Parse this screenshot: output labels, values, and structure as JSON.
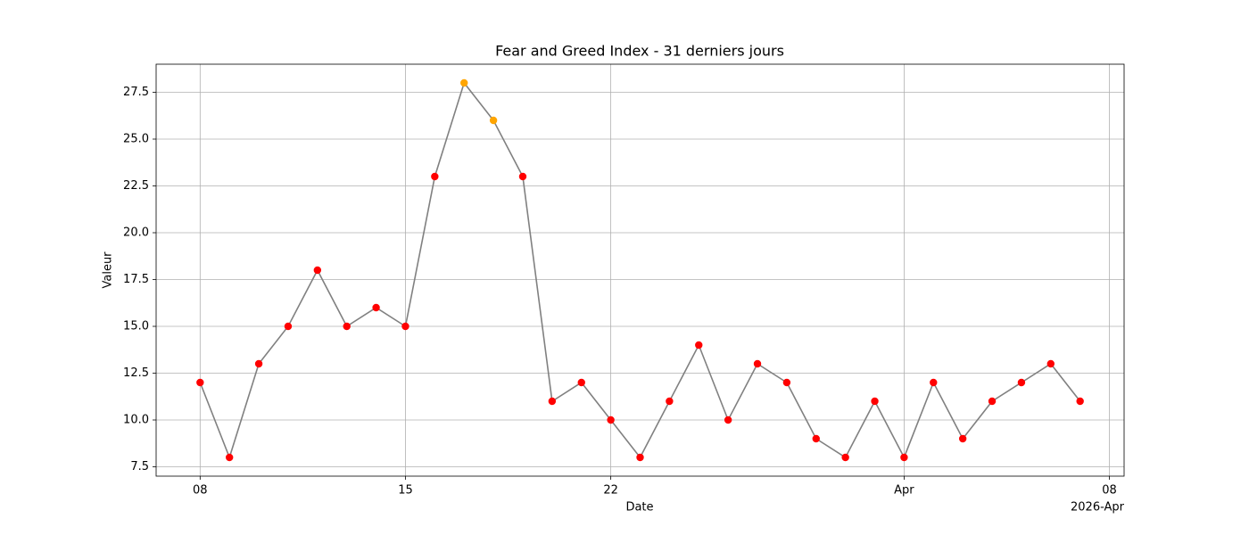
{
  "chart_data": {
    "type": "line",
    "title": "Fear and Greed Index - 31 derniers jours",
    "xlabel": "Date",
    "ylabel": "Valeur",
    "x_offset_label": "2026-Apr",
    "x": [
      "2026-03-08",
      "2026-03-09",
      "2026-03-10",
      "2026-03-11",
      "2026-03-12",
      "2026-03-13",
      "2026-03-14",
      "2026-03-15",
      "2026-03-16",
      "2026-03-17",
      "2026-03-18",
      "2026-03-19",
      "2026-03-20",
      "2026-03-21",
      "2026-03-22",
      "2026-03-23",
      "2026-03-24",
      "2026-03-25",
      "2026-03-26",
      "2026-03-27",
      "2026-03-28",
      "2026-03-29",
      "2026-03-30",
      "2026-03-31",
      "2026-04-01",
      "2026-04-02",
      "2026-04-03",
      "2026-04-04",
      "2026-04-05",
      "2026-04-06",
      "2026-04-07"
    ],
    "series": [
      {
        "color": "#808080",
        "values": [
          12,
          8,
          13,
          15,
          18,
          15,
          16,
          15,
          23,
          28,
          26,
          23,
          11,
          12,
          10,
          8,
          11,
          14,
          10,
          13,
          12,
          9,
          8,
          11,
          8,
          12,
          9,
          11,
          12,
          13,
          11
        ],
        "point_colors": [
          "red",
          "red",
          "red",
          "red",
          "red",
          "red",
          "red",
          "red",
          "red",
          "orange",
          "orange",
          "red",
          "red",
          "red",
          "red",
          "red",
          "red",
          "red",
          "red",
          "red",
          "red",
          "red",
          "red",
          "red",
          "red",
          "red",
          "red",
          "red",
          "red",
          "red",
          "red"
        ]
      }
    ],
    "xlim": [
      "2026-03-06T12:00:00Z",
      "2026-04-08T12:00:00Z"
    ],
    "xticks": [
      {
        "value": "2026-03-08",
        "label": "08"
      },
      {
        "value": "2026-03-15",
        "label": "15"
      },
      {
        "value": "2026-03-22",
        "label": "22"
      },
      {
        "value": "2026-04-01",
        "label": "Apr"
      },
      {
        "value": "2026-04-08",
        "label": "08"
      }
    ],
    "ylim": [
      7,
      29
    ],
    "yticks": [
      {
        "value": 7.5,
        "label": "7.5"
      },
      {
        "value": 10,
        "label": "10.0"
      },
      {
        "value": 12.5,
        "label": "12.5"
      },
      {
        "value": 15,
        "label": "15.0"
      },
      {
        "value": 17.5,
        "label": "17.5"
      },
      {
        "value": 20,
        "label": "20.0"
      },
      {
        "value": 22.5,
        "label": "22.5"
      },
      {
        "value": 25,
        "label": "25.0"
      },
      {
        "value": 27.5,
        "label": "27.5"
      }
    ],
    "grid": true
  }
}
